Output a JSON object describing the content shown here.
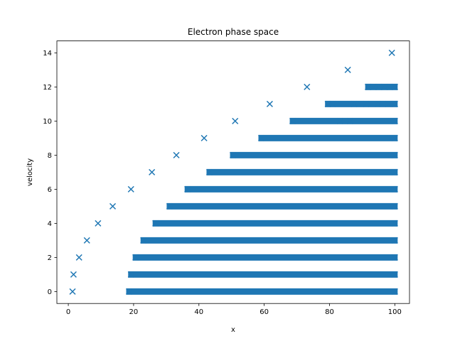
{
  "chart_data": {
    "type": "scatter",
    "title": "Electron phase space",
    "xlabel": "x",
    "ylabel": "velocity",
    "xlim": [
      -3.5,
      104.5
    ],
    "ylim": [
      -0.7,
      14.7
    ],
    "xticks": [
      0,
      20,
      40,
      60,
      80,
      100
    ],
    "yticks": [
      0,
      2,
      4,
      6,
      8,
      10,
      12,
      14
    ],
    "grid": false,
    "marker": "x",
    "color": "#1f77b4",
    "series": [
      {
        "points": [
          {
            "x": 1.3,
            "y": 0
          },
          {
            "x": 1.6,
            "y": 1
          },
          {
            "x": 3.3,
            "y": 2
          },
          {
            "x": 5.7,
            "y": 3
          },
          {
            "x": 9.1,
            "y": 4
          },
          {
            "x": 13.6,
            "y": 5
          },
          {
            "x": 19.2,
            "y": 6
          },
          {
            "x": 25.6,
            "y": 7
          },
          {
            "x": 33.1,
            "y": 8
          },
          {
            "x": 41.6,
            "y": 9
          },
          {
            "x": 51.1,
            "y": 10
          },
          {
            "x": 61.7,
            "y": 11
          },
          {
            "x": 73.1,
            "y": 12
          },
          {
            "x": 85.6,
            "y": 13
          },
          {
            "x": 99.1,
            "y": 14
          },
          {
            "x": 83.2,
            "y": 10
          },
          {
            "x": 86.3,
            "y": 10
          },
          {
            "x": 81.0,
            "y": 11
          },
          {
            "x": 87.5,
            "y": 11
          },
          {
            "x": 91.2,
            "y": 11
          },
          {
            "x": 94.8,
            "y": 11
          },
          {
            "x": 98.0,
            "y": 11
          },
          {
            "x": 100.0,
            "y": 11
          },
          {
            "x": 91.8,
            "y": 12
          },
          {
            "x": 93.4,
            "y": 12
          },
          {
            "x": 95.1,
            "y": 12
          },
          {
            "x": 96.9,
            "y": 12
          },
          {
            "x": 98.5,
            "y": 12
          },
          {
            "x": 100.0,
            "y": 12
          }
        ],
        "bands": [
          {
            "y": 0,
            "x_from": 18.6,
            "x_to": 100
          },
          {
            "y": 1,
            "x_from": 19.2,
            "x_to": 100
          },
          {
            "y": 2,
            "x_from": 20.6,
            "x_to": 100
          },
          {
            "y": 3,
            "x_from": 23.0,
            "x_to": 100
          },
          {
            "y": 4,
            "x_from": 26.7,
            "x_to": 100
          },
          {
            "y": 5,
            "x_from": 31.0,
            "x_to": 100
          },
          {
            "y": 6,
            "x_from": 36.5,
            "x_to": 100
          },
          {
            "y": 7,
            "x_from": 43.2,
            "x_to": 100
          },
          {
            "y": 8,
            "x_from": 50.4,
            "x_to": 100
          },
          {
            "y": 9,
            "x_from": 59.1,
            "x_to": 100
          },
          {
            "y": 10,
            "x_from": 68.7,
            "x_to": 100
          },
          {
            "y": 11,
            "x_from": 79.5,
            "x_to": 100
          },
          {
            "y": 12,
            "x_from": 91.8,
            "x_to": 100
          }
        ]
      }
    ]
  }
}
